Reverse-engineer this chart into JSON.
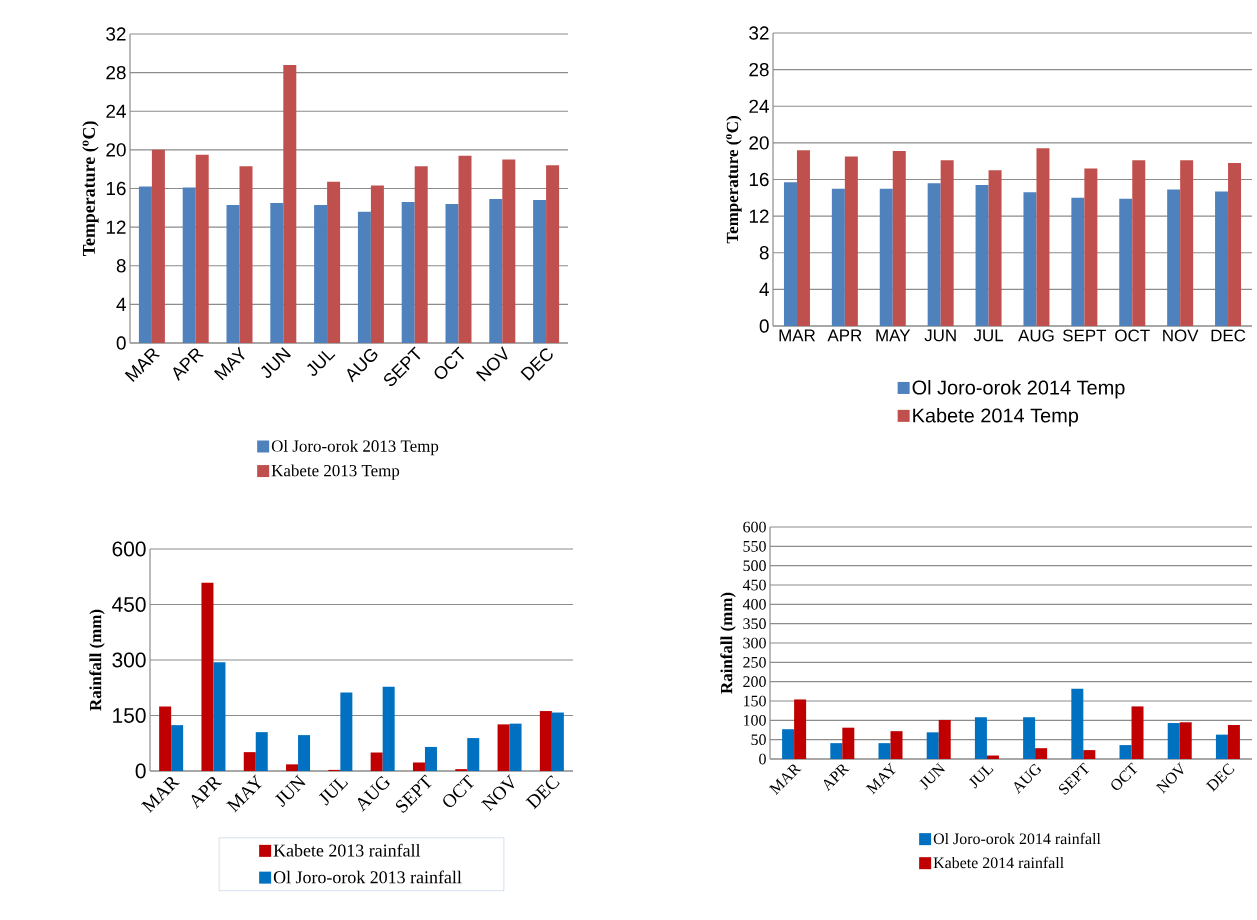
{
  "chart_data": [
    {
      "type": "bar",
      "categories": [
        "MAR",
        "APR",
        "MAY",
        "JUN",
        "JUL",
        "AUG",
        "SEPT",
        "OCT",
        "NOV",
        "DEC"
      ],
      "ylabel": "Temperature ($^{o}$C)",
      "ylim": [
        0,
        32
      ],
      "yticks": [
        0,
        4,
        8,
        12,
        16,
        20,
        24,
        28,
        32
      ],
      "grid": "y",
      "legend": "bottom",
      "series": [
        {
          "name": "Ol Joro-orok 2013 Temp",
          "color": "#4f81bd",
          "values": [
            16.2,
            16.1,
            14.3,
            14.5,
            14.3,
            13.6,
            14.6,
            14.4,
            14.9,
            14.8
          ]
        },
        {
          "name": "Kabete 2013 Temp",
          "color": "#c0504d",
          "values": [
            20.0,
            19.5,
            18.3,
            28.8,
            16.7,
            16.3,
            18.3,
            19.4,
            19.0,
            18.4
          ]
        }
      ]
    },
    {
      "type": "bar",
      "categories": [
        "MAR",
        "APR",
        "MAY",
        "JUN",
        "JUL",
        "AUG",
        "SEPT",
        "OCT",
        "NOV",
        "DEC"
      ],
      "ylabel": "Temperature ($^{o}$C)",
      "ylim": [
        0,
        32
      ],
      "yticks": [
        0,
        4,
        8,
        12,
        16,
        20,
        24,
        28,
        32
      ],
      "grid": "y",
      "legend": "bottom",
      "series": [
        {
          "name": "Ol Joro-orok 2014 Temp",
          "color": "#4f81bd",
          "values": [
            15.7,
            15.0,
            15.0,
            15.6,
            15.4,
            14.6,
            14.0,
            13.9,
            14.9,
            14.7
          ]
        },
        {
          "name": "Kabete 2014 Temp",
          "color": "#c0504d",
          "values": [
            19.2,
            18.5,
            19.1,
            18.1,
            17.0,
            19.4,
            17.2,
            18.1,
            18.1,
            17.8
          ]
        }
      ]
    },
    {
      "type": "bar",
      "categories": [
        "MAR",
        "APR",
        "MAY",
        "JUN",
        "JUL",
        "AUG",
        "SEPT",
        "OCT",
        "NOV",
        "DEC"
      ],
      "ylabel": "Rainfall (mm)",
      "ylim": [
        0,
        600
      ],
      "yticks": [
        0,
        150,
        300,
        450,
        600
      ],
      "grid": "y",
      "legend": "bottom",
      "series": [
        {
          "name": "Kabete 2013 rainfall",
          "color": "#c00000",
          "values": [
            174,
            509,
            51,
            18,
            3,
            50,
            23,
            5,
            126,
            162
          ]
        },
        {
          "name": "Ol Joro-orok 2013 rainfall",
          "color": "#0070c0",
          "values": [
            124,
            294,
            105,
            97,
            212,
            228,
            65,
            89,
            128,
            158
          ]
        }
      ]
    },
    {
      "type": "bar",
      "categories": [
        "MAR",
        "APR",
        "MAY",
        "JUN",
        "JUL",
        "AUG",
        "SEPT",
        "OCT",
        "NOV",
        "DEC"
      ],
      "ylabel": "Rainfall (mm)",
      "ylim": [
        0,
        600
      ],
      "yticks": [
        0,
        50,
        100,
        150,
        200,
        250,
        300,
        350,
        400,
        450,
        500,
        550,
        600
      ],
      "grid": "y",
      "legend": "bottom",
      "series": [
        {
          "name": "Ol Joro-orok 2014 rainfall",
          "color": "#0070c0",
          "values": [
            77,
            41,
            41,
            69,
            108,
            108,
            182,
            36,
            93,
            63
          ]
        },
        {
          "name": "Kabete 2014 rainfall",
          "color": "#c00000",
          "values": [
            154,
            81,
            72,
            101,
            9,
            28,
            23,
            136,
            95,
            88
          ]
        }
      ]
    }
  ]
}
